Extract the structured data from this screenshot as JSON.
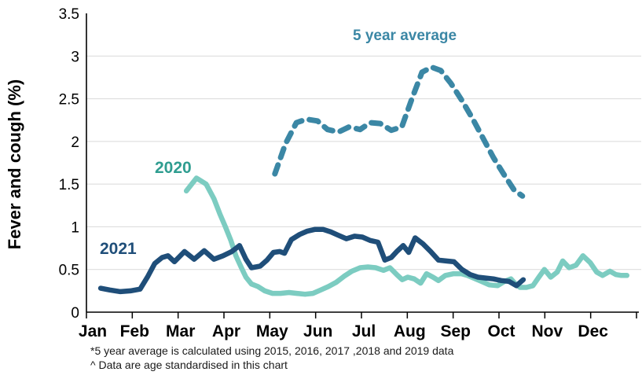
{
  "chart_data": {
    "type": "line",
    "title": "",
    "xlabel": "",
    "ylabel": "Fever and cough (%)",
    "ylim": [
      0,
      3.5
    ],
    "xlim_months": [
      0,
      12
    ],
    "grid": "horizontal",
    "grid_color": "#d9d9d9",
    "axis_color": "#000000",
    "x_ticklabels": [
      "Jan",
      "Feb",
      "Mar",
      "Apr",
      "May",
      "Jun",
      "Jul",
      "Aug",
      "Sep",
      "Oct",
      "Nov",
      "Dec"
    ],
    "y_ticks": [
      0,
      0.5,
      1,
      1.5,
      2,
      2.5,
      3,
      3.5
    ],
    "y_ticklabels": [
      "0",
      "0.5",
      "1",
      "1.5",
      "2",
      "2.5",
      "3",
      "3.5"
    ],
    "legend_position": "inline-annotations",
    "series": [
      {
        "name": "5-year-average",
        "label": "5 year average",
        "color": "#3b87a5",
        "label_color": "#3b87a5",
        "style": "dashed",
        "points": [
          [
            4.11,
            1.62
          ],
          [
            4.34,
            1.97
          ],
          [
            4.58,
            2.22
          ],
          [
            4.8,
            2.26
          ],
          [
            5.04,
            2.24
          ],
          [
            5.26,
            2.14
          ],
          [
            5.5,
            2.11
          ],
          [
            5.73,
            2.17
          ],
          [
            5.97,
            2.14
          ],
          [
            6.19,
            2.22
          ],
          [
            6.41,
            2.21
          ],
          [
            6.65,
            2.13
          ],
          [
            6.88,
            2.17
          ],
          [
            7.1,
            2.5
          ],
          [
            7.32,
            2.81
          ],
          [
            7.53,
            2.87
          ],
          [
            7.73,
            2.83
          ],
          [
            7.95,
            2.68
          ],
          [
            8.19,
            2.48
          ],
          [
            8.42,
            2.27
          ],
          [
            8.64,
            2.05
          ],
          [
            8.88,
            1.81
          ],
          [
            9.1,
            1.62
          ],
          [
            9.33,
            1.43
          ],
          [
            9.51,
            1.36
          ]
        ]
      },
      {
        "name": "2020",
        "label": "2020",
        "color": "#7cccc1",
        "label_color": "#2f9d90",
        "style": "solid",
        "points": [
          [
            2.18,
            1.42
          ],
          [
            2.4,
            1.57
          ],
          [
            2.61,
            1.5
          ],
          [
            2.78,
            1.33
          ],
          [
            2.91,
            1.15
          ],
          [
            3.03,
            1.0
          ],
          [
            3.15,
            0.84
          ],
          [
            3.26,
            0.66
          ],
          [
            3.38,
            0.52
          ],
          [
            3.48,
            0.41
          ],
          [
            3.6,
            0.33
          ],
          [
            3.74,
            0.3
          ],
          [
            3.89,
            0.25
          ],
          [
            4.06,
            0.22
          ],
          [
            4.23,
            0.22
          ],
          [
            4.42,
            0.23
          ],
          [
            4.59,
            0.22
          ],
          [
            4.77,
            0.21
          ],
          [
            4.94,
            0.22
          ],
          [
            5.11,
            0.26
          ],
          [
            5.28,
            0.3
          ],
          [
            5.45,
            0.35
          ],
          [
            5.62,
            0.42
          ],
          [
            5.79,
            0.48
          ],
          [
            5.97,
            0.52
          ],
          [
            6.14,
            0.53
          ],
          [
            6.31,
            0.52
          ],
          [
            6.48,
            0.49
          ],
          [
            6.62,
            0.52
          ],
          [
            6.77,
            0.44
          ],
          [
            6.89,
            0.38
          ],
          [
            7.01,
            0.41
          ],
          [
            7.15,
            0.39
          ],
          [
            7.29,
            0.34
          ],
          [
            7.42,
            0.45
          ],
          [
            7.56,
            0.41
          ],
          [
            7.68,
            0.37
          ],
          [
            7.83,
            0.43
          ],
          [
            8.01,
            0.45
          ],
          [
            8.18,
            0.45
          ],
          [
            8.31,
            0.43
          ],
          [
            8.49,
            0.39
          ],
          [
            8.62,
            0.36
          ],
          [
            8.79,
            0.32
          ],
          [
            8.97,
            0.31
          ],
          [
            9.12,
            0.36
          ],
          [
            9.26,
            0.39
          ],
          [
            9.36,
            0.33
          ],
          [
            9.46,
            0.29
          ],
          [
            9.6,
            0.29
          ],
          [
            9.74,
            0.31
          ],
          [
            9.87,
            0.41
          ],
          [
            9.99,
            0.5
          ],
          [
            10.13,
            0.41
          ],
          [
            10.27,
            0.47
          ],
          [
            10.39,
            0.6
          ],
          [
            10.53,
            0.52
          ],
          [
            10.68,
            0.55
          ],
          [
            10.83,
            0.66
          ],
          [
            10.99,
            0.58
          ],
          [
            11.13,
            0.47
          ],
          [
            11.26,
            0.43
          ],
          [
            11.42,
            0.48
          ],
          [
            11.55,
            0.44
          ],
          [
            11.67,
            0.43
          ],
          [
            11.79,
            0.43
          ]
        ]
      },
      {
        "name": "2021",
        "label": "2021",
        "color": "#1f4e79",
        "label_color": "#1f4e79",
        "style": "solid",
        "points": [
          [
            0.31,
            0.28
          ],
          [
            0.51,
            0.26
          ],
          [
            0.74,
            0.24
          ],
          [
            0.96,
            0.25
          ],
          [
            1.17,
            0.27
          ],
          [
            1.34,
            0.42
          ],
          [
            1.49,
            0.57
          ],
          [
            1.65,
            0.64
          ],
          [
            1.78,
            0.66
          ],
          [
            1.92,
            0.59
          ],
          [
            2.14,
            0.71
          ],
          [
            2.35,
            0.62
          ],
          [
            2.57,
            0.72
          ],
          [
            2.78,
            0.62
          ],
          [
            2.98,
            0.66
          ],
          [
            3.17,
            0.71
          ],
          [
            3.34,
            0.78
          ],
          [
            3.48,
            0.62
          ],
          [
            3.6,
            0.52
          ],
          [
            3.79,
            0.54
          ],
          [
            3.94,
            0.61
          ],
          [
            4.08,
            0.7
          ],
          [
            4.22,
            0.71
          ],
          [
            4.32,
            0.69
          ],
          [
            4.47,
            0.85
          ],
          [
            4.65,
            0.91
          ],
          [
            4.82,
            0.95
          ],
          [
            4.99,
            0.97
          ],
          [
            5.16,
            0.97
          ],
          [
            5.33,
            0.94
          ],
          [
            5.5,
            0.9
          ],
          [
            5.67,
            0.86
          ],
          [
            5.85,
            0.89
          ],
          [
            6.02,
            0.88
          ],
          [
            6.19,
            0.84
          ],
          [
            6.36,
            0.82
          ],
          [
            6.51,
            0.61
          ],
          [
            6.65,
            0.64
          ],
          [
            6.77,
            0.71
          ],
          [
            6.91,
            0.78
          ],
          [
            7.03,
            0.7
          ],
          [
            7.17,
            0.87
          ],
          [
            7.34,
            0.8
          ],
          [
            7.51,
            0.71
          ],
          [
            7.68,
            0.61
          ],
          [
            7.85,
            0.6
          ],
          [
            8.02,
            0.59
          ],
          [
            8.19,
            0.5
          ],
          [
            8.37,
            0.44
          ],
          [
            8.54,
            0.41
          ],
          [
            8.71,
            0.4
          ],
          [
            8.88,
            0.39
          ],
          [
            9.05,
            0.37
          ],
          [
            9.22,
            0.36
          ],
          [
            9.38,
            0.31
          ],
          [
            9.53,
            0.38
          ]
        ]
      }
    ]
  },
  "footnotes": [
    "*5 year average is calculated using 2015, 2016, 2017 ,2018 and 2019 data",
    "^ Data are age standardised in this chart"
  ]
}
